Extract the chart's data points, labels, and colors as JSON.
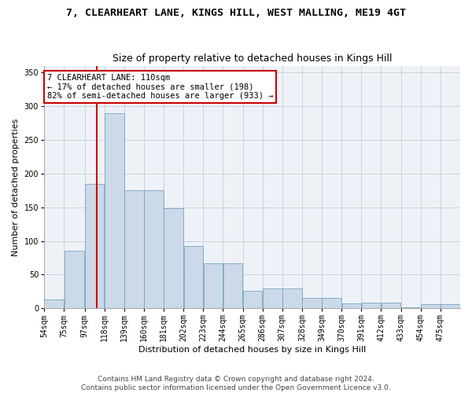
{
  "title": "7, CLEARHEART LANE, KINGS HILL, WEST MALLING, ME19 4GT",
  "subtitle": "Size of property relative to detached houses in Kings Hill",
  "xlabel": "Distribution of detached houses by size in Kings Hill",
  "ylabel": "Number of detached properties",
  "bar_color": "#ccd9e8",
  "bar_edge_color": "#6699bb",
  "bins": [
    54,
    75,
    97,
    118,
    139,
    160,
    181,
    202,
    223,
    244,
    265,
    286,
    307,
    328,
    349,
    370,
    391,
    412,
    433,
    454,
    475
  ],
  "heights": [
    13,
    85,
    185,
    290,
    175,
    175,
    148,
    92,
    67,
    67,
    26,
    30,
    30,
    15,
    15,
    7,
    8,
    8,
    2,
    6,
    6
  ],
  "property_size": 110,
  "annotation_line1": "7 CLEARHEART LANE: 110sqm",
  "annotation_line2": "← 17% of detached houses are smaller (198)",
  "annotation_line3": "82% of semi-detached houses are larger (933) →",
  "annotation_box_color": "#ffffff",
  "annotation_box_edge": "#cc0000",
  "vline_color": "#cc0000",
  "ylim": [
    0,
    360
  ],
  "yticks": [
    0,
    50,
    100,
    150,
    200,
    250,
    300,
    350
  ],
  "footer": "Contains HM Land Registry data © Crown copyright and database right 2024.\nContains public sector information licensed under the Open Government Licence v3.0.",
  "bg_color": "#eef2f7",
  "grid_color": "#c8d4e0",
  "title_fontsize": 9.5,
  "subtitle_fontsize": 9,
  "axis_label_fontsize": 8,
  "tick_fontsize": 7,
  "annotation_fontsize": 7.5,
  "footer_fontsize": 6.5
}
